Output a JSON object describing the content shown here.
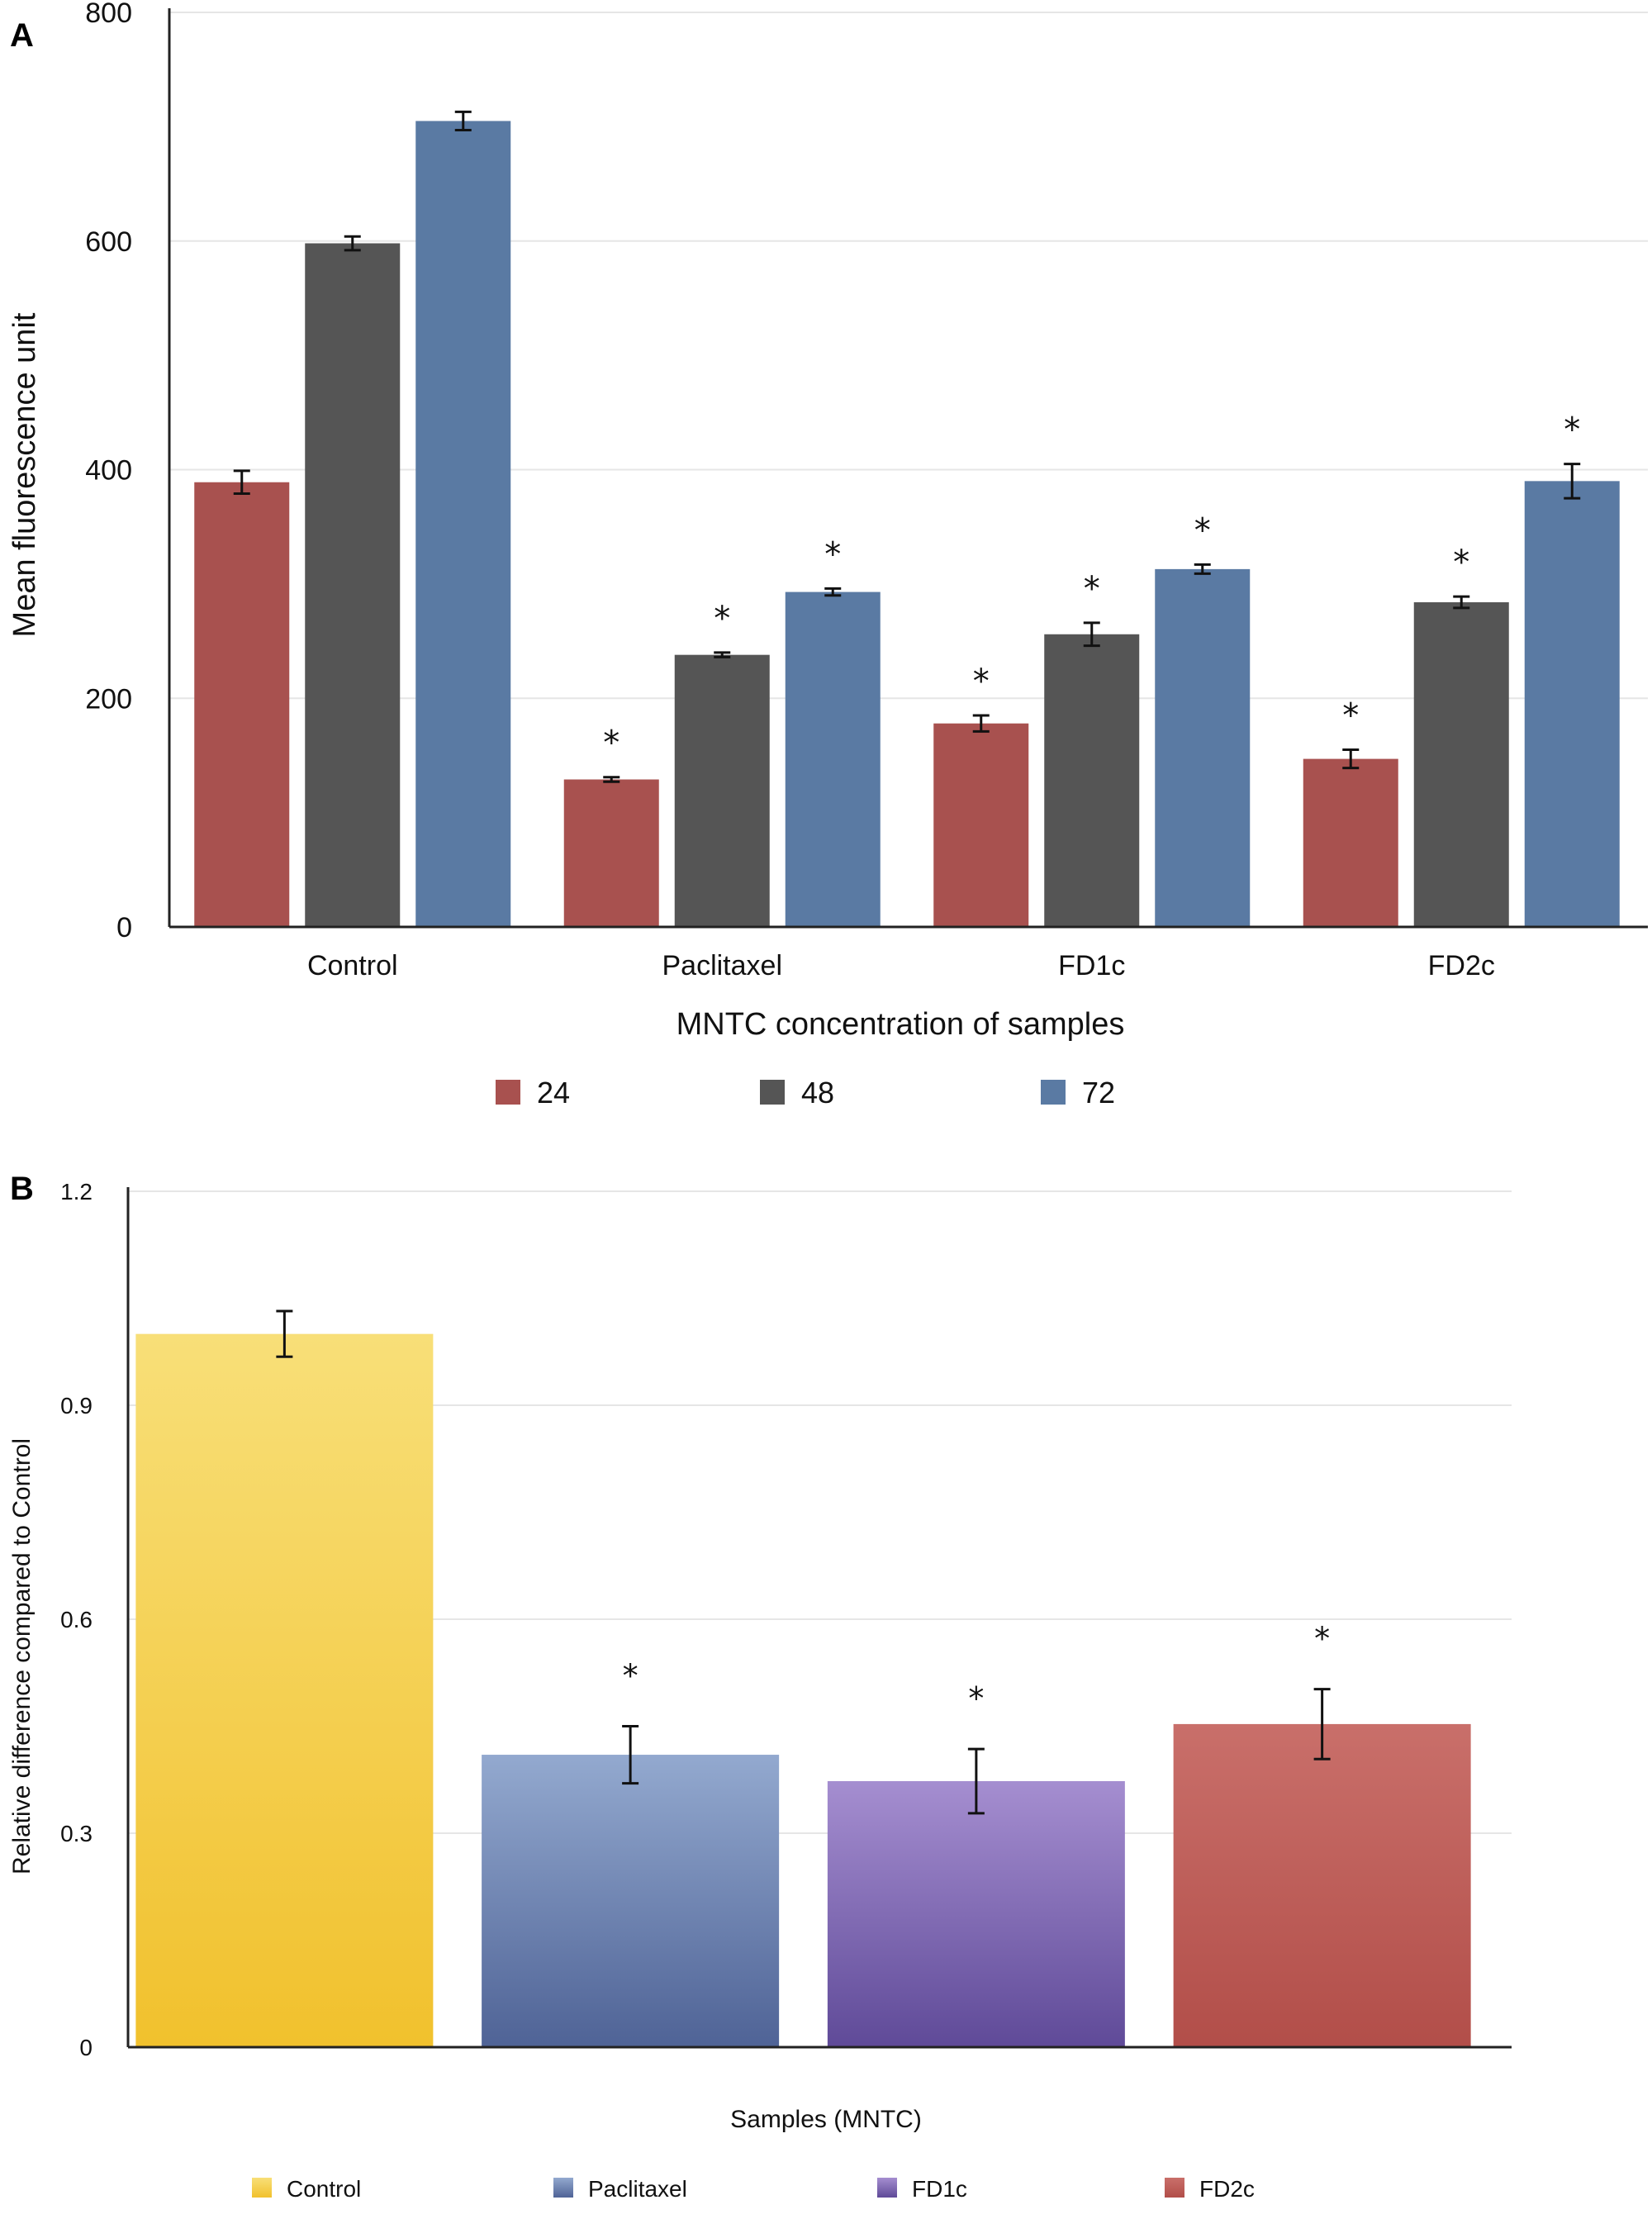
{
  "chart_data": [
    {
      "panel": "A",
      "type": "bar",
      "title": "",
      "xlabel": "MNTC concentration of samples",
      "ylabel": "Mean fluorescence unit",
      "ylim": [
        0,
        800
      ],
      "yticks": [
        0,
        200,
        400,
        600,
        800
      ],
      "ytick_labels": [
        "0",
        "200",
        "400",
        "600",
        "800"
      ],
      "grid": true,
      "legend_position": "bottom",
      "categories": [
        "Control",
        "Paclitaxel",
        "FD1c",
        "FD2c"
      ],
      "series": [
        {
          "name": "24",
          "color": "#a8514f",
          "values": [
            389,
            129,
            178,
            147
          ],
          "errors": [
            10,
            2,
            7,
            8
          ],
          "significance": [
            "",
            "*",
            "*",
            "*"
          ]
        },
        {
          "name": "48",
          "color": "#555555",
          "values": [
            598,
            238,
            256,
            284
          ],
          "errors": [
            6,
            2,
            10,
            5
          ],
          "significance": [
            "",
            "*",
            "*",
            "*"
          ]
        },
        {
          "name": "72",
          "color": "#5a7aa3",
          "values": [
            705,
            293,
            313,
            390
          ],
          "errors": [
            8,
            3,
            4,
            15
          ],
          "significance": [
            "",
            "*",
            "*",
            "*"
          ]
        }
      ]
    },
    {
      "panel": "B",
      "type": "bar",
      "title": "",
      "xlabel": "Samples (MNTC)",
      "ylabel": "Relative difference compared to Control",
      "ylim": [
        0,
        1.2
      ],
      "yticks": [
        0,
        0.3,
        0.6,
        0.9,
        1.2
      ],
      "ytick_labels": [
        "0",
        "0.3",
        "0.6",
        "0.9",
        "1.2"
      ],
      "grid": true,
      "legend_position": "bottom",
      "categories": [
        "Control",
        "Paclitaxel",
        "FD1c",
        "FD2c"
      ],
      "values": [
        1.0,
        0.41,
        0.373,
        0.453
      ],
      "errors": [
        0.032,
        0.04,
        0.045,
        0.049
      ],
      "significance": [
        "",
        "*",
        "*",
        "*"
      ],
      "colors": [
        {
          "top": "#f8df78",
          "bottom": "#f1c12d"
        },
        {
          "top": "#93a9cf",
          "bottom": "#4f6396"
        },
        {
          "top": "#a58ed0",
          "bottom": "#5f4a98"
        },
        {
          "top": "#c96f6a",
          "bottom": "#b24e49"
        }
      ]
    }
  ]
}
